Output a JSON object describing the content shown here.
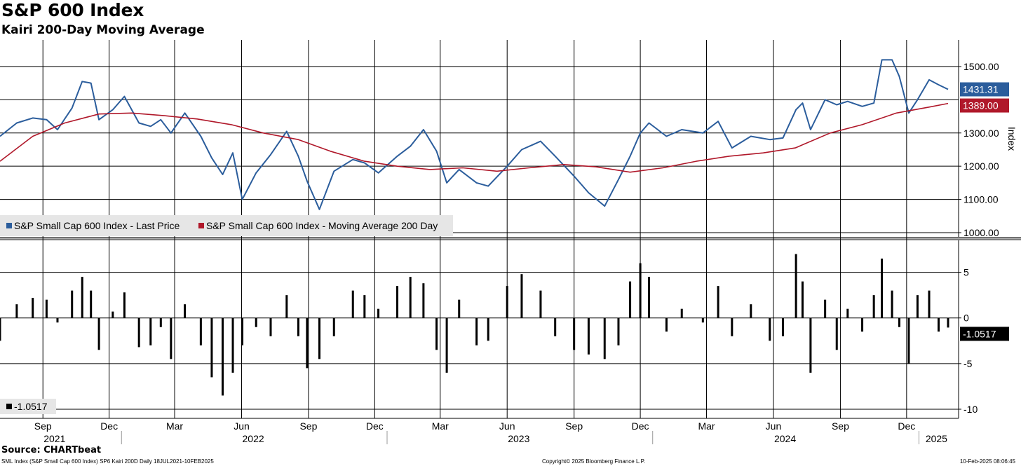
{
  "title": "S&P 600 Index",
  "subtitle": "Kairi 200-Day Moving Average",
  "source": "Source: CHARTbeat",
  "footer": {
    "left": "SML Index (S&P Small Cap 600 Index) SP6 Kairi 200D  Daily 18JUL2021-10FEB2025",
    "center": "Copyright© 2025 Bloomberg Finance L.P.",
    "right": "10-Feb-2025 08:06:45"
  },
  "colors": {
    "price": "#2b5d9c",
    "ma": "#b0182a",
    "kairi": "#000000",
    "grid": "#000000",
    "legend_bg": "#e6e6e6"
  },
  "chart_data": [
    {
      "type": "line",
      "panel": "upper",
      "ylabel": "Index",
      "ylim": [
        1000,
        1580
      ],
      "y_ticks": [
        1000,
        1100,
        1200,
        1300,
        1400,
        1500
      ],
      "y_tick_labels": [
        "1000.00",
        "1100.00",
        "1200.00",
        "1300.00",
        "",
        "1500.00"
      ],
      "x_range": [
        "2021-07-18",
        "2025-02-10"
      ],
      "series": [
        {
          "name": "S&P Small Cap 600 Index - Last Price",
          "last_label": "1431.31",
          "x": [
            "2021-07-18",
            "2021-08-10",
            "2021-09-01",
            "2021-09-20",
            "2021-10-05",
            "2021-10-25",
            "2021-11-08",
            "2021-11-20",
            "2021-12-01",
            "2021-12-20",
            "2022-01-05",
            "2022-01-25",
            "2022-02-10",
            "2022-02-24",
            "2022-03-10",
            "2022-03-29",
            "2022-04-20",
            "2022-05-05",
            "2022-05-20",
            "2022-06-03",
            "2022-06-16",
            "2022-07-05",
            "2022-07-25",
            "2022-08-16",
            "2022-09-01",
            "2022-09-13",
            "2022-09-30",
            "2022-10-20",
            "2022-11-15",
            "2022-12-01",
            "2022-12-20",
            "2023-01-15",
            "2023-02-02",
            "2023-02-20",
            "2023-03-10",
            "2023-03-24",
            "2023-04-10",
            "2023-05-04",
            "2023-05-20",
            "2023-06-15",
            "2023-07-05",
            "2023-07-31",
            "2023-08-20",
            "2023-09-15",
            "2023-10-05",
            "2023-10-27",
            "2023-11-15",
            "2023-12-01",
            "2023-12-15",
            "2023-12-27",
            "2024-01-20",
            "2024-02-10",
            "2024-03-10",
            "2024-03-31",
            "2024-04-19",
            "2024-05-15",
            "2024-06-10",
            "2024-06-28",
            "2024-07-16",
            "2024-07-25",
            "2024-08-05",
            "2024-08-25",
            "2024-09-10",
            "2024-09-25",
            "2024-10-15",
            "2024-10-31",
            "2024-11-11",
            "2024-11-25",
            "2024-12-05",
            "2024-12-18",
            "2024-12-30",
            "2025-01-15",
            "2025-01-28",
            "2025-02-10"
          ],
          "values": [
            1290,
            1330,
            1345,
            1340,
            1310,
            1375,
            1455,
            1450,
            1340,
            1370,
            1410,
            1330,
            1320,
            1340,
            1300,
            1360,
            1290,
            1225,
            1175,
            1240,
            1100,
            1180,
            1235,
            1305,
            1230,
            1155,
            1070,
            1185,
            1220,
            1210,
            1180,
            1230,
            1260,
            1310,
            1245,
            1150,
            1190,
            1150,
            1140,
            1200,
            1250,
            1275,
            1230,
            1170,
            1120,
            1080,
            1160,
            1230,
            1300,
            1330,
            1290,
            1310,
            1300,
            1335,
            1255,
            1290,
            1280,
            1285,
            1370,
            1390,
            1310,
            1400,
            1385,
            1395,
            1380,
            1390,
            1520,
            1520,
            1470,
            1360,
            1400,
            1460,
            1445,
            1431.31
          ]
        },
        {
          "name": "S&P Small Cap 600 Index - Moving Average 200 Day",
          "last_label": "1389.00",
          "x": [
            "2021-07-18",
            "2021-09-01",
            "2021-10-15",
            "2021-12-01",
            "2022-01-15",
            "2022-03-01",
            "2022-04-15",
            "2022-06-01",
            "2022-07-15",
            "2022-09-01",
            "2022-10-15",
            "2022-12-01",
            "2023-01-15",
            "2023-03-01",
            "2023-04-15",
            "2023-06-01",
            "2023-07-15",
            "2023-09-01",
            "2023-10-15",
            "2023-12-01",
            "2024-01-15",
            "2024-03-01",
            "2024-04-15",
            "2024-06-01",
            "2024-07-15",
            "2024-09-01",
            "2024-10-15",
            "2024-12-01",
            "2025-01-15",
            "2025-02-10"
          ],
          "values": [
            1215,
            1290,
            1330,
            1357,
            1360,
            1352,
            1342,
            1325,
            1300,
            1280,
            1245,
            1215,
            1200,
            1190,
            1195,
            1185,
            1195,
            1205,
            1198,
            1182,
            1195,
            1215,
            1230,
            1240,
            1255,
            1300,
            1325,
            1360,
            1378,
            1389.0
          ]
        }
      ]
    },
    {
      "type": "bar",
      "panel": "lower",
      "ylim": [
        -11,
        8.5
      ],
      "y_ticks": [
        5,
        0,
        -5,
        -10
      ],
      "y_tick_labels": [
        "5",
        "0",
        "-5",
        "-10"
      ],
      "series": [
        {
          "name": "-1.0517",
          "last_label": "-1.0517",
          "x": [
            "2021-07-18",
            "2021-08-10",
            "2021-09-01",
            "2021-09-20",
            "2021-10-05",
            "2021-10-25",
            "2021-11-08",
            "2021-11-20",
            "2021-12-01",
            "2021-12-20",
            "2022-01-05",
            "2022-01-25",
            "2022-02-10",
            "2022-02-24",
            "2022-03-10",
            "2022-03-29",
            "2022-04-20",
            "2022-05-05",
            "2022-05-20",
            "2022-06-03",
            "2022-06-16",
            "2022-07-05",
            "2022-07-25",
            "2022-08-16",
            "2022-09-01",
            "2022-09-13",
            "2022-09-30",
            "2022-10-20",
            "2022-11-15",
            "2022-12-01",
            "2022-12-20",
            "2023-01-15",
            "2023-02-02",
            "2023-02-20",
            "2023-03-10",
            "2023-03-24",
            "2023-04-10",
            "2023-05-04",
            "2023-05-20",
            "2023-06-15",
            "2023-07-05",
            "2023-07-31",
            "2023-08-20",
            "2023-09-15",
            "2023-10-05",
            "2023-10-27",
            "2023-11-15",
            "2023-12-01",
            "2023-12-15",
            "2023-12-27",
            "2024-01-20",
            "2024-02-10",
            "2024-03-10",
            "2024-03-31",
            "2024-04-19",
            "2024-05-15",
            "2024-06-10",
            "2024-06-28",
            "2024-07-16",
            "2024-07-25",
            "2024-08-05",
            "2024-08-25",
            "2024-09-10",
            "2024-09-25",
            "2024-10-15",
            "2024-10-31",
            "2024-11-11",
            "2024-11-25",
            "2024-12-05",
            "2024-12-18",
            "2024-12-30",
            "2025-01-15",
            "2025-01-28",
            "2025-02-10"
          ],
          "values": [
            -2.5,
            1.5,
            2.2,
            2.0,
            -0.5,
            3.0,
            4.5,
            3.0,
            -3.5,
            0.7,
            2.8,
            -3.2,
            -3.0,
            -1.0,
            -4.5,
            1.5,
            -3.0,
            -6.5,
            -8.5,
            -6.0,
            -3.0,
            -1.0,
            -2.0,
            2.5,
            -2.0,
            -5.5,
            -4.5,
            -2.0,
            3.0,
            2.5,
            1.0,
            3.5,
            4.5,
            3.8,
            -3.5,
            -6.0,
            2.0,
            -3.0,
            -2.5,
            3.5,
            4.8,
            3.0,
            -2.0,
            -3.5,
            -4.0,
            -4.5,
            -3.0,
            4.0,
            6.0,
            4.5,
            -1.5,
            1.0,
            -0.5,
            3.5,
            -2.0,
            1.5,
            -2.5,
            -2.0,
            7.0,
            4.0,
            -6.0,
            2.0,
            -3.5,
            1.0,
            -1.5,
            2.5,
            6.5,
            3.0,
            -1.0,
            -5.0,
            2.5,
            3.0,
            -1.5,
            -1.0517
          ]
        }
      ]
    }
  ],
  "x_axis": {
    "months": [
      "Sep",
      "Dec",
      "Mar",
      "Jun",
      "Sep",
      "Dec",
      "Mar",
      "Jun",
      "Sep",
      "Dec",
      "Mar",
      "Jun",
      "Sep",
      "Dec"
    ],
    "month_dates": [
      "2021-09-15",
      "2021-12-15",
      "2022-03-15",
      "2022-06-15",
      "2022-09-15",
      "2022-12-15",
      "2023-03-15",
      "2023-06-15",
      "2023-09-15",
      "2023-12-15",
      "2024-03-15",
      "2024-06-15",
      "2024-09-15",
      "2024-12-15"
    ],
    "years": [
      "2021",
      "2022",
      "2023",
      "2024",
      "2025"
    ],
    "year_centers": [
      "2021-10-01",
      "2022-07-01",
      "2023-07-01",
      "2024-07-01",
      "2025-01-25"
    ],
    "year_boundaries": [
      "2022-01-01",
      "2023-01-01",
      "2024-01-01",
      "2025-01-01"
    ]
  }
}
